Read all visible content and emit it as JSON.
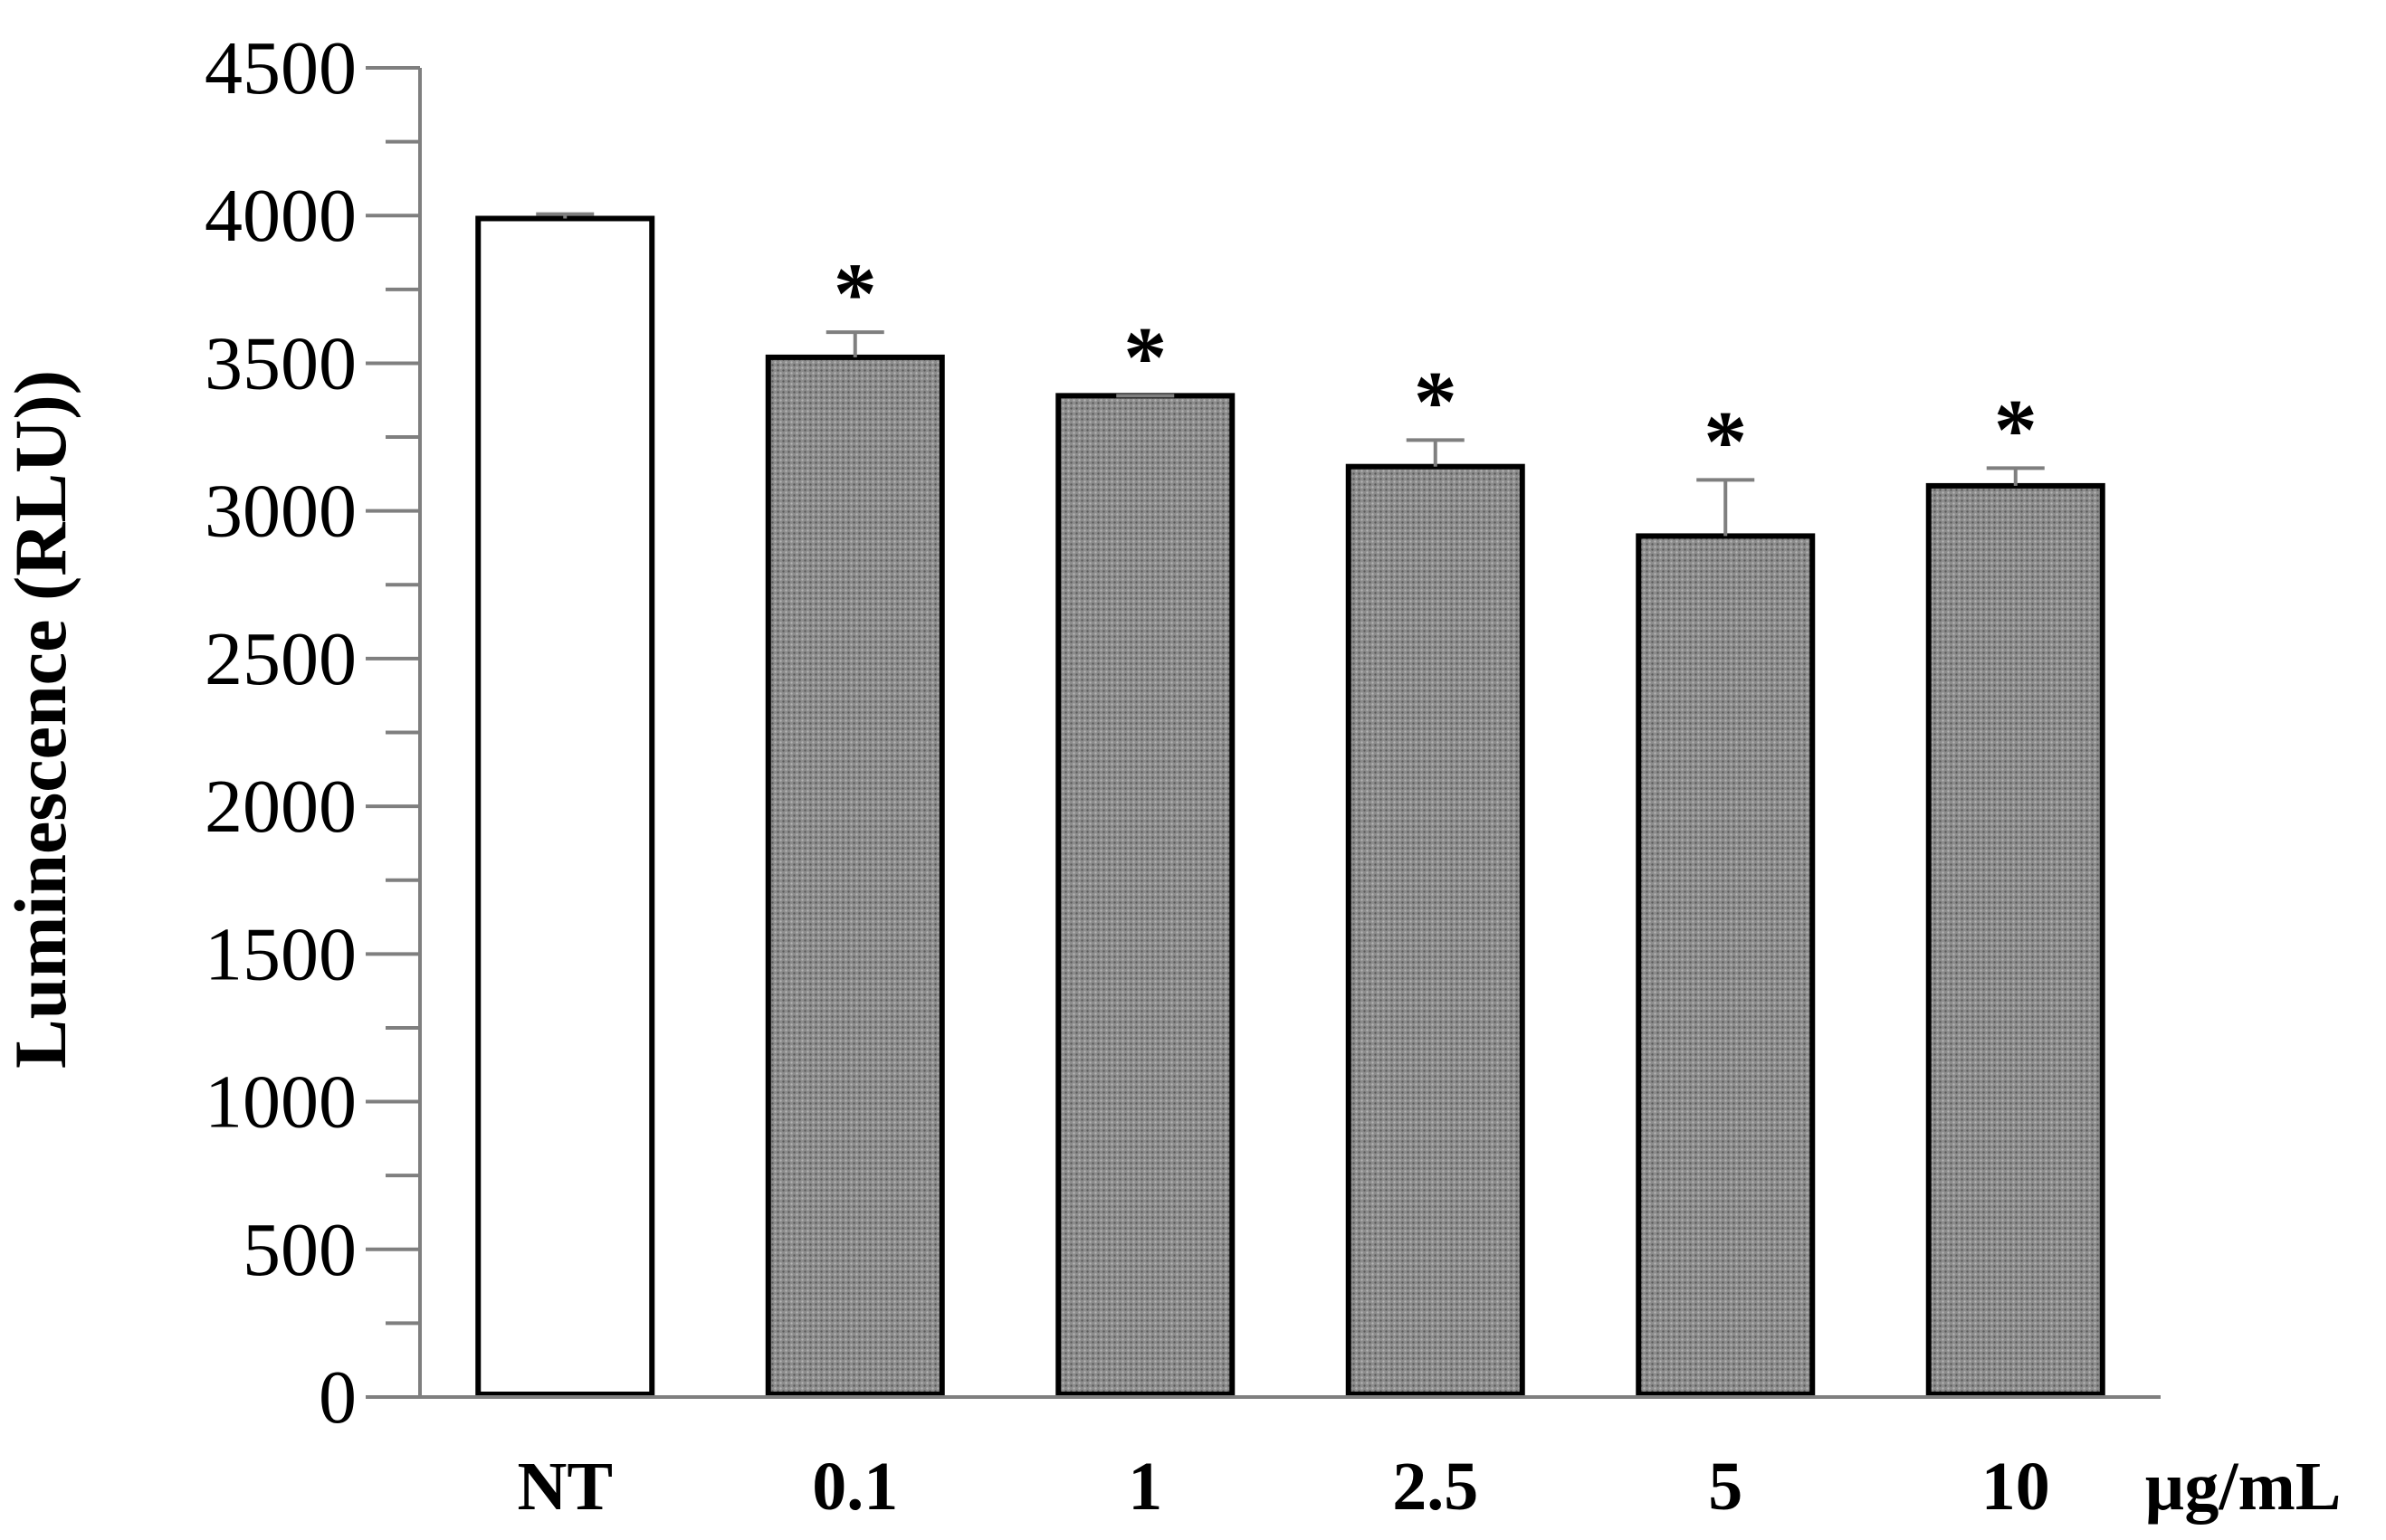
{
  "chart_data": {
    "type": "bar",
    "ylabel": "Luminescence (RLU))",
    "xunit": "µg/mL",
    "ylim": [
      0,
      4500
    ],
    "ytick_step": 500,
    "yminor_step": 250,
    "grid": false,
    "categories": [
      "NT",
      "0.1",
      "1",
      "2.5",
      "5",
      "10"
    ],
    "values": [
      3990,
      3520,
      3390,
      3150,
      2915,
      3085
    ],
    "errors": [
      15,
      85,
      0,
      90,
      190,
      60
    ],
    "significance": [
      "",
      "*",
      "*",
      "*",
      "*",
      "*"
    ],
    "colors": {
      "control_fill": "#ffffff",
      "treated_fill": "#8c8c8c",
      "bar_stroke": "#000000",
      "axis": "#7f7f7f",
      "error_bar": "#7f7f7f"
    }
  }
}
